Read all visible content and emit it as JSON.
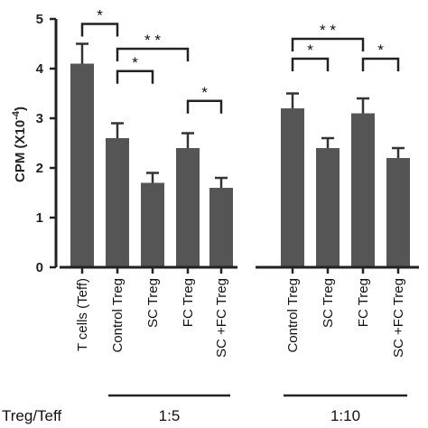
{
  "chart_data": {
    "type": "bar",
    "ylabel": "CPM (X10",
    "ylabel_sup": "-4",
    "ylabel_close": ")",
    "ylim": [
      0,
      5
    ],
    "yticks": [
      "0",
      "1",
      "2",
      "3",
      "4",
      "5"
    ],
    "bar_color": "#555555",
    "categories": [
      "T cells (Teff)",
      "Control Treg",
      "SC Treg",
      "FC Treg",
      "SC +FC Treg",
      "Control Treg",
      "SC Treg",
      "FC Treg",
      "SC +FC Treg"
    ],
    "values": [
      4.1,
      2.6,
      1.7,
      2.4,
      1.6,
      3.2,
      2.4,
      3.1,
      2.2
    ],
    "errors": [
      0.4,
      0.3,
      0.2,
      0.3,
      0.2,
      0.3,
      0.2,
      0.3,
      0.2
    ],
    "axis_label": "Treg/Teff",
    "groups": [
      {
        "label": "1:5",
        "first": 1,
        "last": 4
      },
      {
        "label": "1:10",
        "first": 5,
        "last": 8
      }
    ],
    "significance": [
      {
        "a": 0,
        "b": 1,
        "level": 4.9,
        "label": "*"
      },
      {
        "a": 1,
        "b": 3,
        "level": 4.4,
        "label": "* *"
      },
      {
        "a": 1,
        "b": 2,
        "level": 3.95,
        "label": "*"
      },
      {
        "a": 3,
        "b": 4,
        "level": 3.35,
        "label": "*"
      },
      {
        "a": 5,
        "b": 7,
        "level": 4.6,
        "label": "* *"
      },
      {
        "a": 5,
        "b": 6,
        "level": 4.2,
        "label": "*"
      },
      {
        "a": 7,
        "b": 8,
        "level": 4.2,
        "label": "*"
      }
    ]
  }
}
